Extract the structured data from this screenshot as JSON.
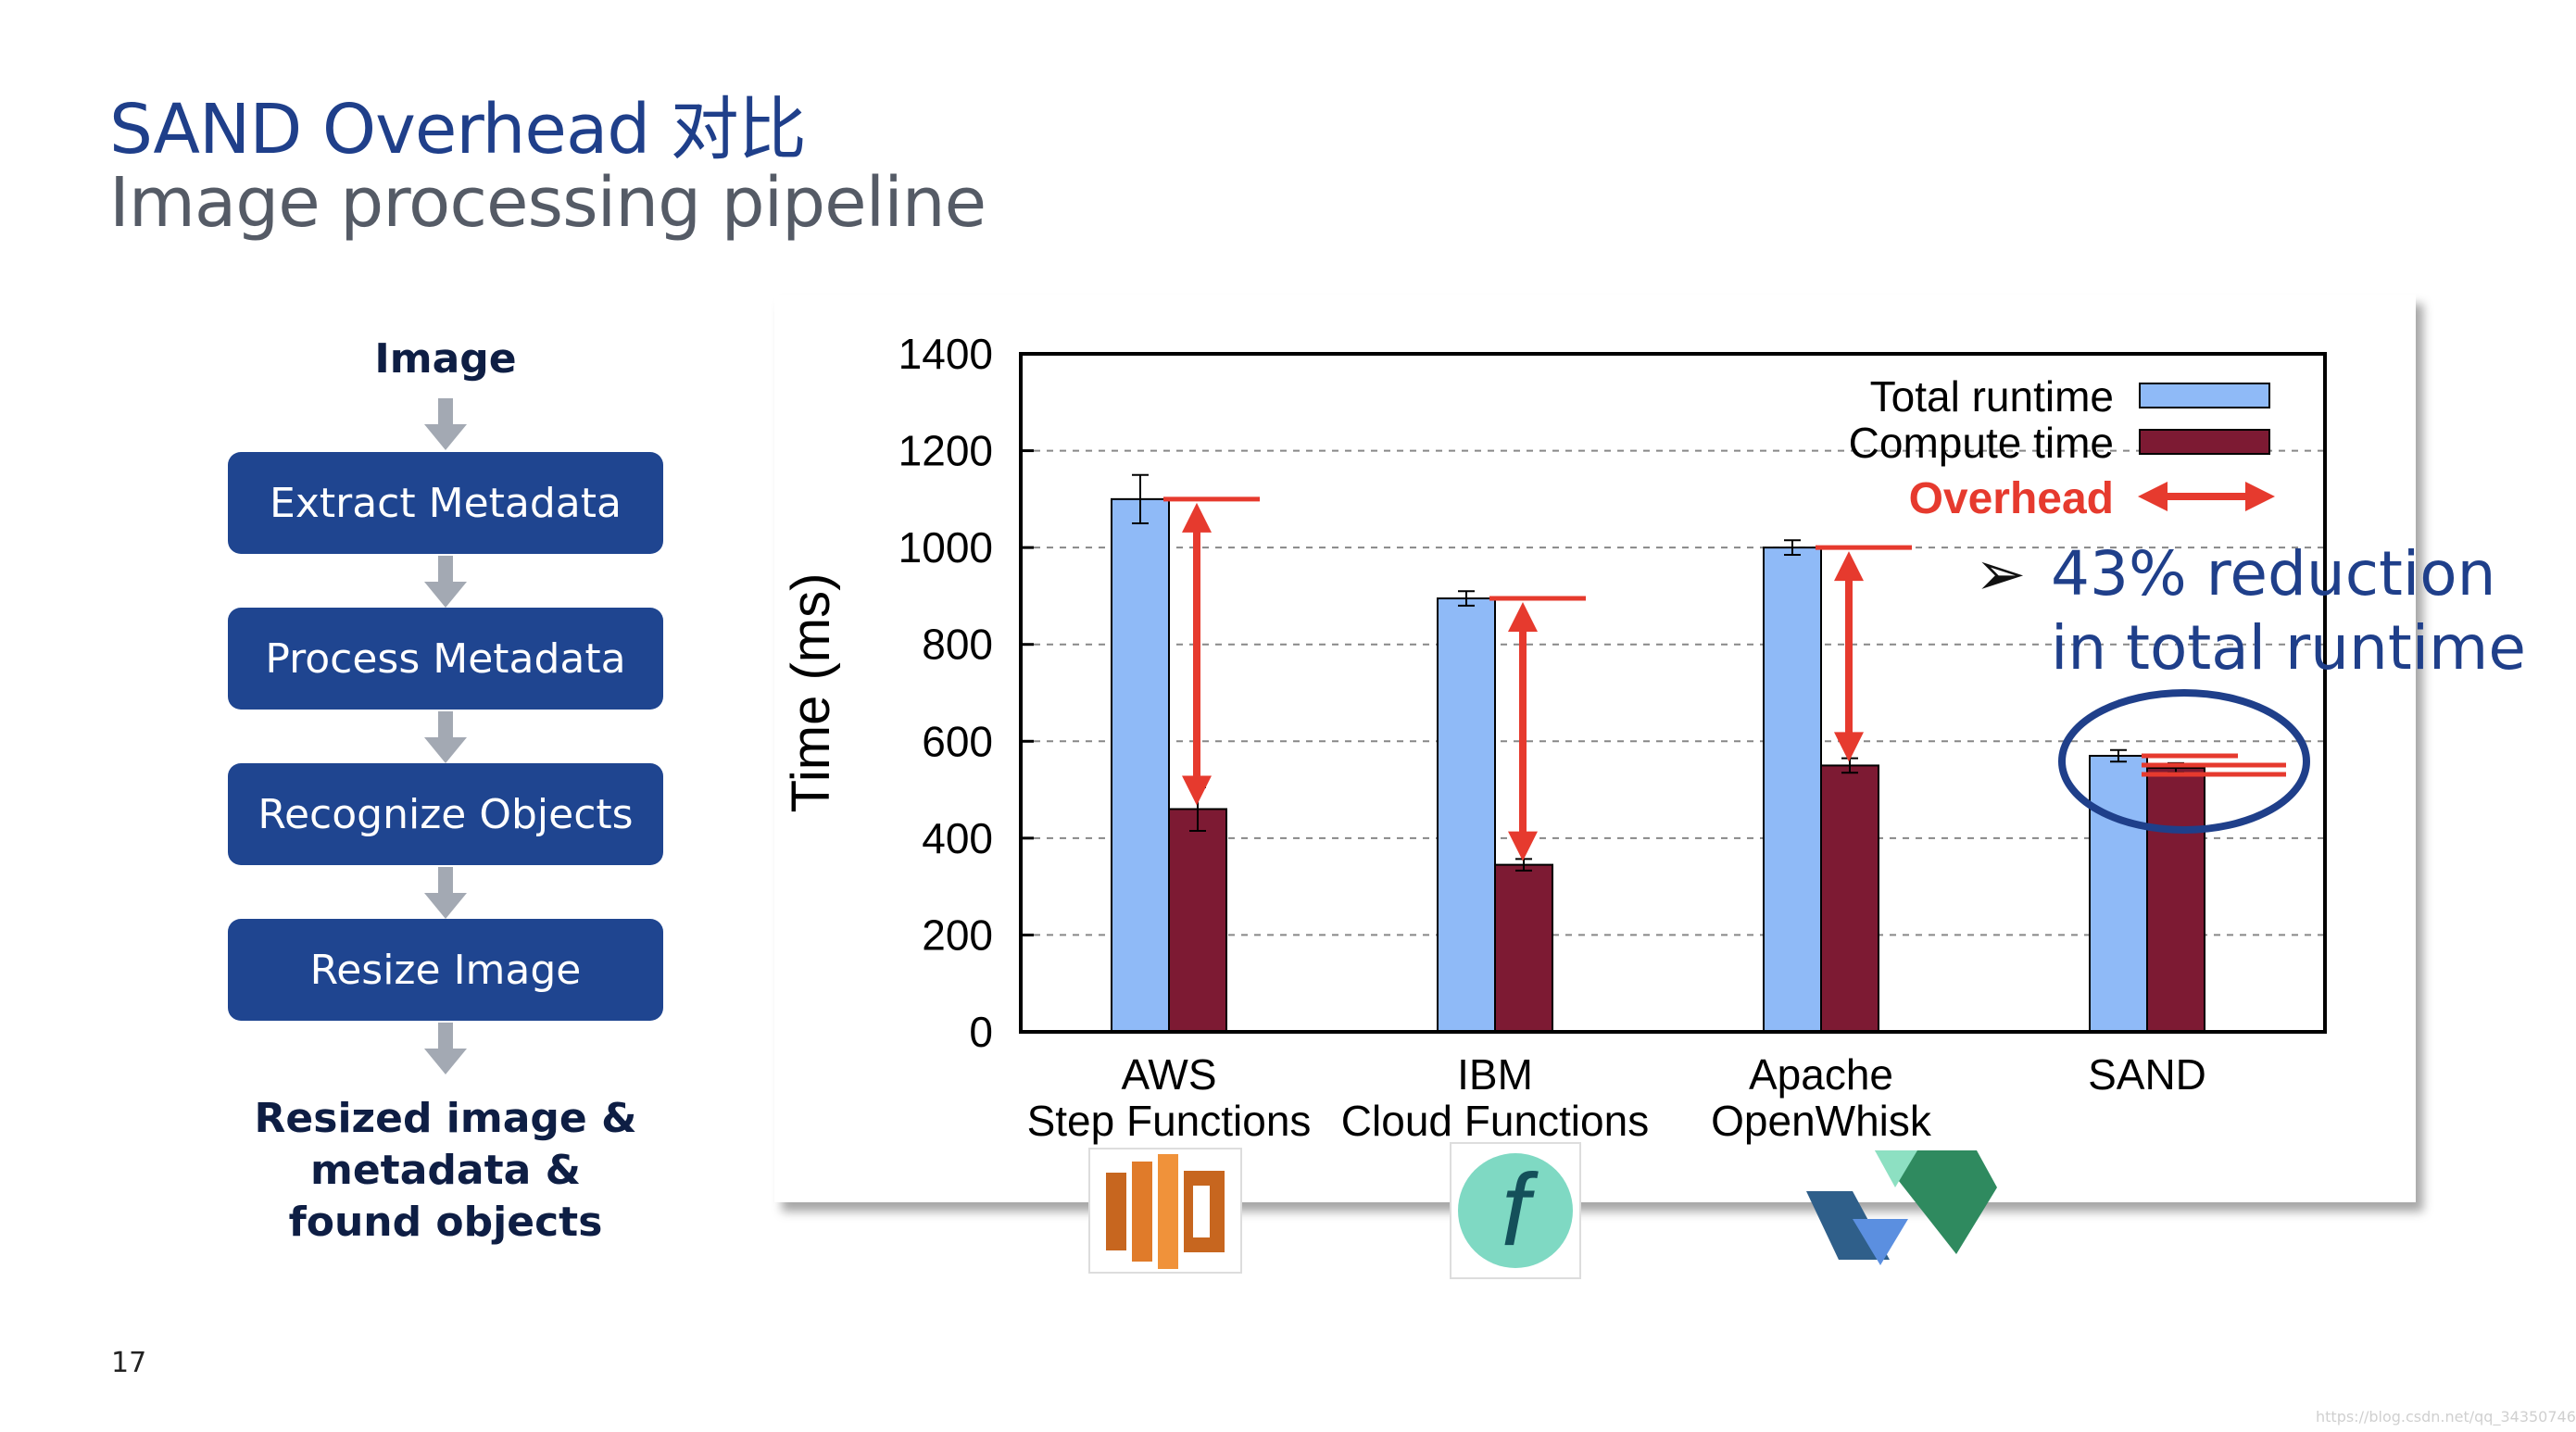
{
  "slide": {
    "title": "SAND Overhead 对比",
    "subtitle": "Image processing pipeline",
    "page_number": "17",
    "watermark": "https://blog.csdn.net/qq_34350746"
  },
  "pipeline": {
    "input_label": "Image",
    "steps": [
      "Extract Metadata",
      "Process Metadata",
      "Recognize Objects",
      "Resize Image"
    ],
    "output_lines": [
      "Resized image &",
      "metadata &",
      "found objects"
    ]
  },
  "callout": {
    "line1": "43% reduction",
    "line2": "in total runtime"
  },
  "colors": {
    "total_runtime": "#8fbaf7",
    "compute_time": "#7d1a33",
    "overhead": "#e63a2e",
    "title_blue": "#1f3f8a",
    "box_blue": "#1f4590"
  },
  "icons": [
    "aws-step-functions-icon",
    "ibm-cloud-functions-icon",
    "apache-openwhisk-icon"
  ],
  "chart_data": {
    "type": "bar",
    "ylabel": "Time (ms)",
    "ylim": [
      0,
      1400
    ],
    "yticks": [
      0,
      200,
      400,
      600,
      800,
      1000,
      1200,
      1400
    ],
    "grid": "horizontal dashed",
    "legend_position": "top-right",
    "categories": [
      [
        "AWS",
        "Step Functions"
      ],
      [
        "IBM",
        "Cloud Functions"
      ],
      [
        "Apache",
        "OpenWhisk"
      ],
      [
        "SAND"
      ]
    ],
    "series": [
      {
        "name": "Total runtime",
        "values": [
          1100,
          895,
          1000,
          570
        ],
        "error": [
          50,
          15,
          15,
          12
        ]
      },
      {
        "name": "Compute time",
        "values": [
          460,
          345,
          550,
          545
        ],
        "error": [
          45,
          12,
          15,
          10
        ]
      }
    ],
    "overhead_label": "Overhead"
  }
}
